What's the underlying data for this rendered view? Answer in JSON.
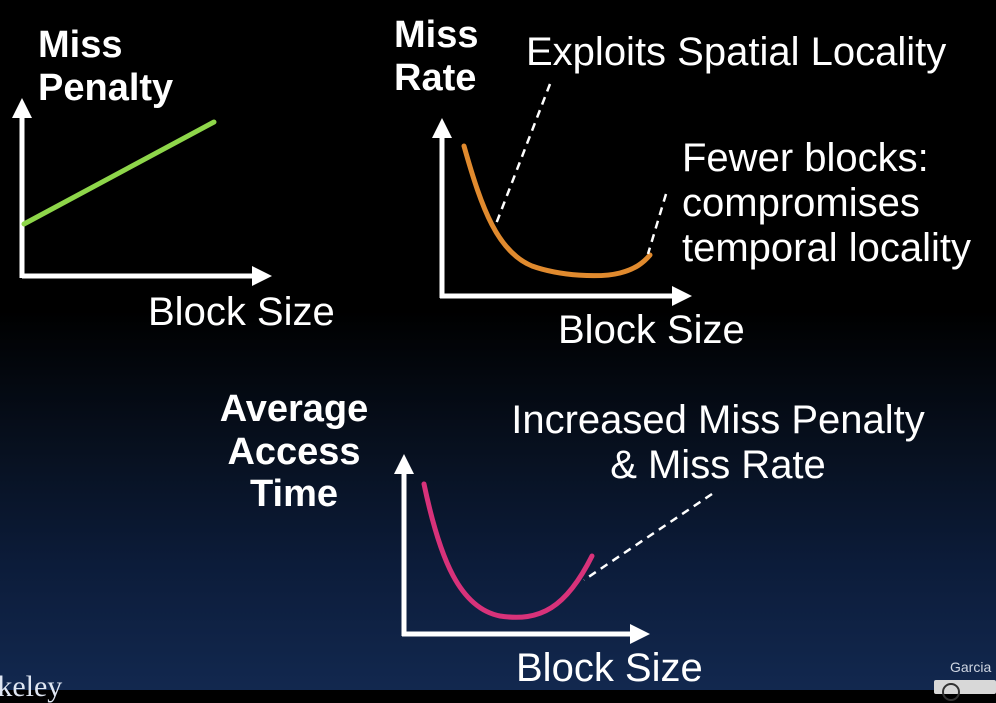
{
  "panels": {
    "miss_penalty": {
      "y_label_lines": [
        "Miss",
        "Penalty"
      ],
      "x_label": "Block Size",
      "curve_color": "#8ed64a"
    },
    "miss_rate": {
      "y_label_lines": [
        "Miss",
        "Rate"
      ],
      "x_label": "Block Size",
      "curve_color": "#e08a2e",
      "annotation_left": "Exploits Spatial Locality",
      "annotation_right_lines": [
        "Fewer blocks:",
        "compromises",
        "temporal locality"
      ]
    },
    "average_access_time": {
      "y_label_lines": [
        "Average",
        "Access",
        "Time"
      ],
      "x_label": "Block Size",
      "curve_color": "#d8327a",
      "annotation_lines": [
        "Increased Miss Penalty",
        "& Miss Rate"
      ]
    }
  },
  "footer": {
    "left_text": "Berkeley",
    "right_text": "Garcia"
  },
  "colors": {
    "axis": "#ffffff",
    "background_top": "#000000",
    "background_bottom": "#12284f"
  }
}
